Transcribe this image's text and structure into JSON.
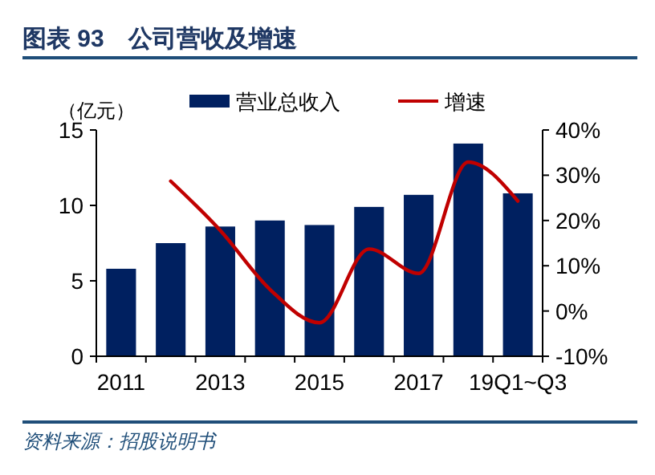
{
  "chart_data": {
    "type": "bar",
    "title": "图表 93　公司营收及增速",
    "ylabel": "（亿元）",
    "annotations": [
      "资料来源：招股说明书"
    ],
    "categories": [
      "2011",
      null,
      "2013",
      null,
      "2015",
      null,
      "2017",
      null,
      "19Q1~Q3"
    ],
    "series": [
      {
        "name": "营业总收入",
        "color": "#002060",
        "values": [
          5.8,
          7.5,
          8.6,
          9.0,
          8.7,
          9.9,
          10.7,
          14.1,
          10.8
        ]
      },
      {
        "name": "增速",
        "type": "line",
        "axis": "y2",
        "color": "#c00000",
        "values": [
          null,
          28.7,
          17.8,
          4.8,
          -2.6,
          13.7,
          8.3,
          32.9,
          24.3
        ]
      }
    ],
    "ylim": [
      0,
      15
    ],
    "yticks": [
      0,
      5,
      10,
      15
    ],
    "y2lim": [
      -10,
      40
    ],
    "y2ticks": [
      {
        "value": -10,
        "label": "-10%"
      },
      {
        "value": 0,
        "label": "0%"
      },
      {
        "value": 10,
        "label": "10%"
      },
      {
        "value": 20,
        "label": "20%"
      },
      {
        "value": 30,
        "label": "30%"
      },
      {
        "value": 40,
        "label": "40%"
      }
    ],
    "legend": "top",
    "grid": false
  }
}
